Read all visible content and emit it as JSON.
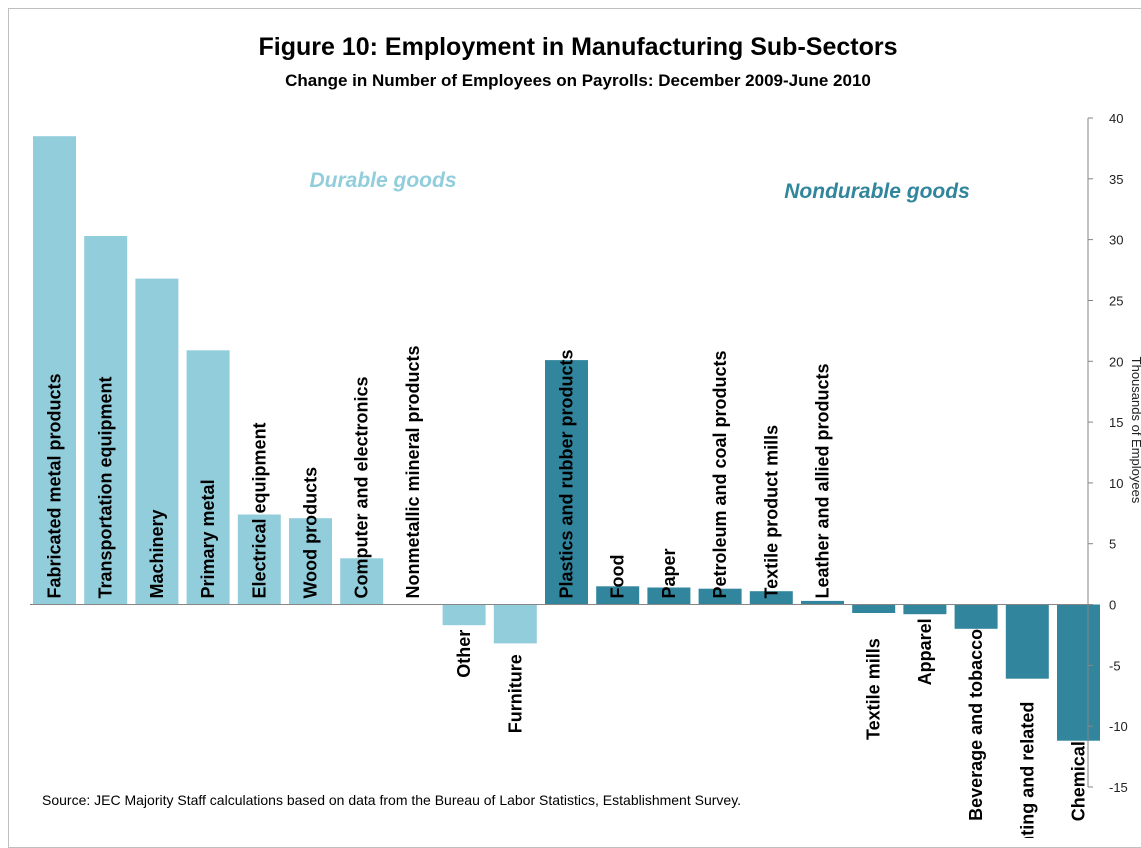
{
  "chart_data": {
    "type": "bar",
    "title": "Figure 10: Employment in Manufacturing Sub-Sectors",
    "subtitle": "Change in Number of Employees on Payrolls: December 2009-June 2010",
    "ylabel": "Thousands of Employees",
    "ylim": [
      -15,
      40
    ],
    "yticks": [
      40,
      35,
      30,
      25,
      20,
      15,
      10,
      5,
      0,
      -5,
      -10,
      -15
    ],
    "y_axis_side": "right",
    "grid": false,
    "group_labels": [
      {
        "label": "Durable goods",
        "color": "#92cddc"
      },
      {
        "label": "Nondurable goods",
        "color": "#31859c"
      }
    ],
    "categories": [
      "Fabricated metal products",
      "Transportation equipment",
      "Machinery",
      "Primary metal",
      "Electrical equipment",
      "Wood products",
      "Computer and electronics",
      "Nonmetallic mineral products",
      "Other",
      "Furniture",
      "Plastics and rubber products",
      "Food",
      "Paper",
      "Petroleum and coal products",
      "Textile product mills",
      "Leather and allied products",
      "Textile mills",
      "Apparel",
      "Beverage and tobacco",
      "Printing and related",
      "Chemical"
    ],
    "values": [
      38.5,
      30.3,
      26.8,
      20.9,
      7.4,
      7.1,
      3.8,
      0,
      -1.7,
      -3.2,
      20.1,
      1.5,
      1.4,
      1.3,
      1.1,
      0.3,
      -0.7,
      -0.8,
      -2.0,
      -6.1,
      -11.2
    ],
    "groups": [
      "Durable goods",
      "Durable goods",
      "Durable goods",
      "Durable goods",
      "Durable goods",
      "Durable goods",
      "Durable goods",
      "Durable goods",
      "Durable goods",
      "Durable goods",
      "Nondurable goods",
      "Nondurable goods",
      "Nondurable goods",
      "Nondurable goods",
      "Nondurable goods",
      "Nondurable goods",
      "Nondurable goods",
      "Nondurable goods",
      "Nondurable goods",
      "Nondurable goods",
      "Nondurable goods"
    ],
    "source": "Source: JEC Majority Staff calculations  based on data from the Bureau of Labor Statistics, Establishment Survey."
  }
}
